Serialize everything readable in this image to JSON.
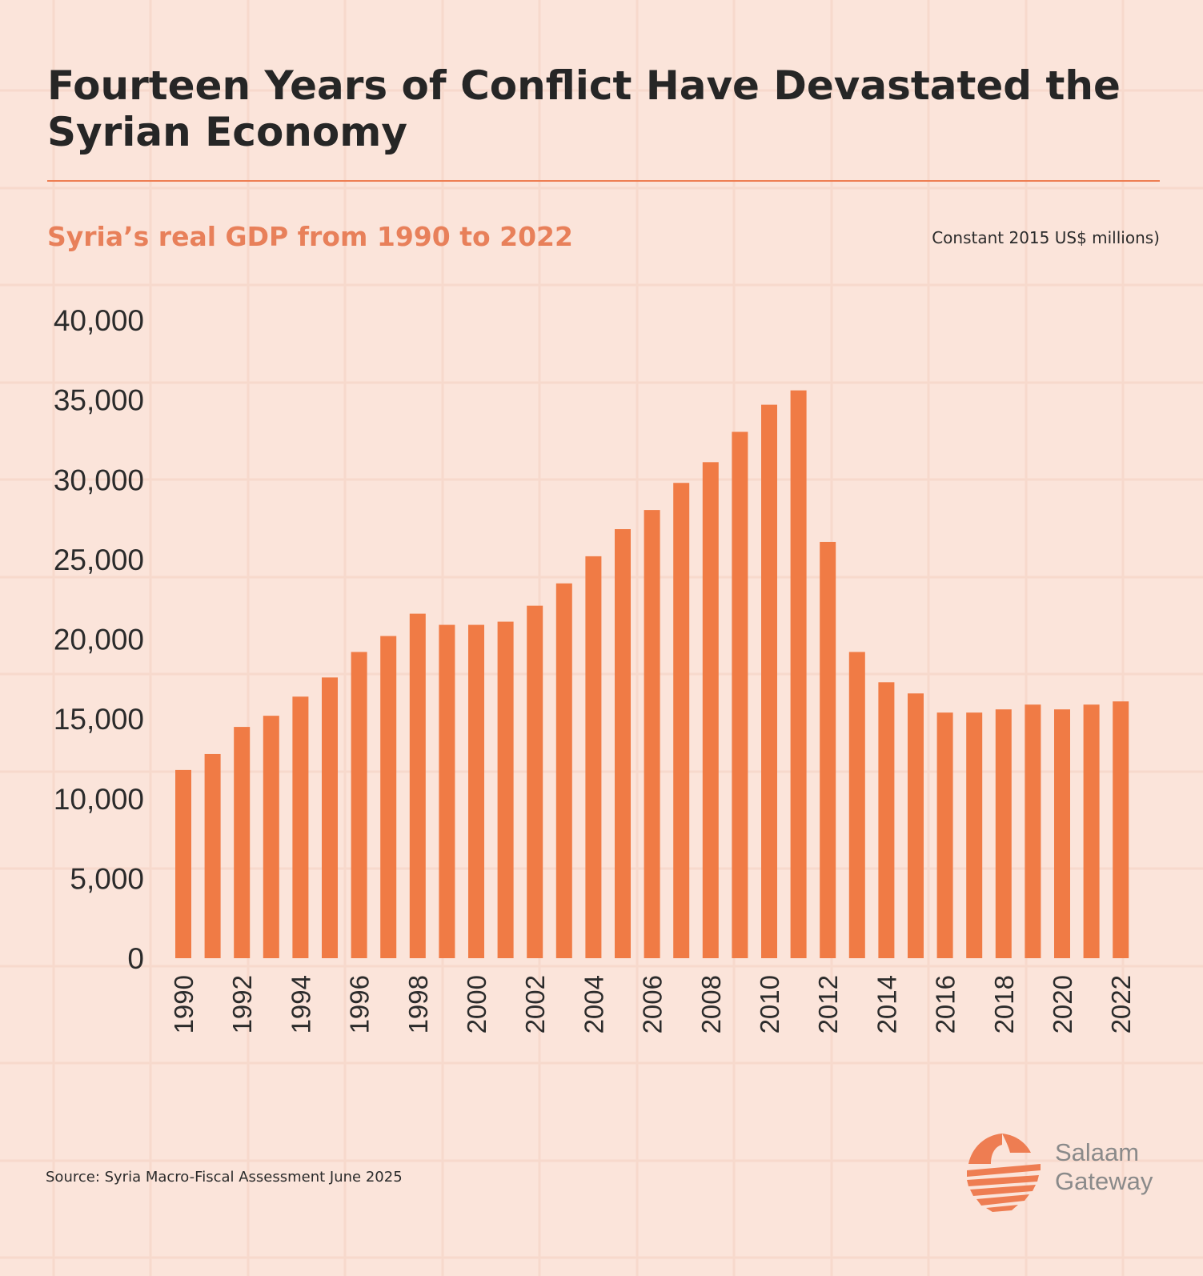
{
  "header": {
    "title": "Fourteen Years of Conflict Have Devastated the Syrian Economy",
    "subtitle": "Syria’s real GDP from 1990 to 2022",
    "units": "Constant 2015 US$ millions)"
  },
  "footer": {
    "source": "Source: Syria Macro-Fiscal Assessment June 2025",
    "logo_line1": "Salaam",
    "logo_line2": "Gateway"
  },
  "colors": {
    "background": "#fbe4da",
    "bar": "#f07b45",
    "accent": "#ee7d52",
    "title": "#262626",
    "logo_text": "#8a8a8a"
  },
  "chart_data": {
    "type": "bar",
    "title": "Syria’s real GDP from 1990 to 2022",
    "xlabel": "",
    "ylabel": "",
    "units": "Constant 2015 US$ millions)",
    "ylim": [
      0,
      40000
    ],
    "yticks": [
      0,
      5000,
      10000,
      15000,
      20000,
      25000,
      30000,
      35000,
      40000
    ],
    "ytick_labels": [
      "0",
      "5,000",
      "10,000",
      "15,000",
      "20,000",
      "25,000",
      "30,000",
      "35,000",
      "40,000"
    ],
    "xtick_labels": [
      "1990",
      "1992",
      "1994",
      "1996",
      "1998",
      "2000",
      "2002",
      "2004",
      "2006",
      "2008",
      "2010",
      "2012",
      "2014",
      "2016",
      "2018",
      "2020",
      "2022"
    ],
    "categories": [
      "1990",
      "1991",
      "1992",
      "1993",
      "1994",
      "1995",
      "1996",
      "1997",
      "1998",
      "1999",
      "2000",
      "2001",
      "2002",
      "2003",
      "2004",
      "2005",
      "2006",
      "2007",
      "2008",
      "2009",
      "2010",
      "2011",
      "2012",
      "2013",
      "2014",
      "2015",
      "2016",
      "2017",
      "2018",
      "2019",
      "2020",
      "2021",
      "2022"
    ],
    "values": [
      11800,
      12800,
      14500,
      15200,
      16400,
      17600,
      19200,
      20200,
      21600,
      20900,
      20900,
      21100,
      22100,
      23500,
      25200,
      26900,
      28100,
      29800,
      31100,
      33000,
      34700,
      35600,
      26100,
      19200,
      17300,
      16600,
      15400,
      15400,
      15600,
      15900,
      15600,
      15900,
      16100
    ],
    "grid": false,
    "legend": "none"
  }
}
